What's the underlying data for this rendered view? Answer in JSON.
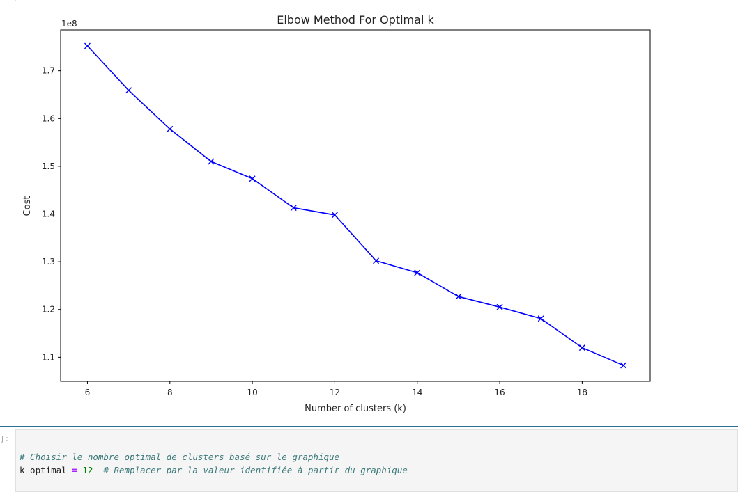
{
  "notebook": {
    "input_prompt": "]:",
    "code": {
      "line1_comment": "# Choisir le nombre optimal de clusters basé sur le graphique",
      "line2_var": "k_optimal",
      "line2_op": "=",
      "line2_num": "12",
      "line2_comment": "# Remplacer par la valeur identifiée à partir du graphique"
    }
  },
  "chart_data": {
    "type": "line",
    "title": "Elbow Method For Optimal k",
    "xlabel": "Number of clusters (k)",
    "ylabel": "Cost",
    "y_offset_label": "1e8",
    "x": [
      6,
      7,
      8,
      9,
      10,
      11,
      12,
      13,
      14,
      15,
      16,
      17,
      18,
      19
    ],
    "y": [
      1.752,
      1.659,
      1.578,
      1.51,
      1.474,
      1.413,
      1.398,
      1.302,
      1.277,
      1.227,
      1.205,
      1.181,
      1.12,
      1.083
    ],
    "xlim": [
      5.35,
      19.65
    ],
    "ylim": [
      1.0495,
      1.7855
    ],
    "xticks": [
      6,
      8,
      10,
      12,
      14,
      16,
      18
    ],
    "yticks": [
      1.1,
      1.2,
      1.3,
      1.4,
      1.5,
      1.6,
      1.7
    ],
    "color": "#0000ff",
    "marker": "x",
    "grid": false
  }
}
